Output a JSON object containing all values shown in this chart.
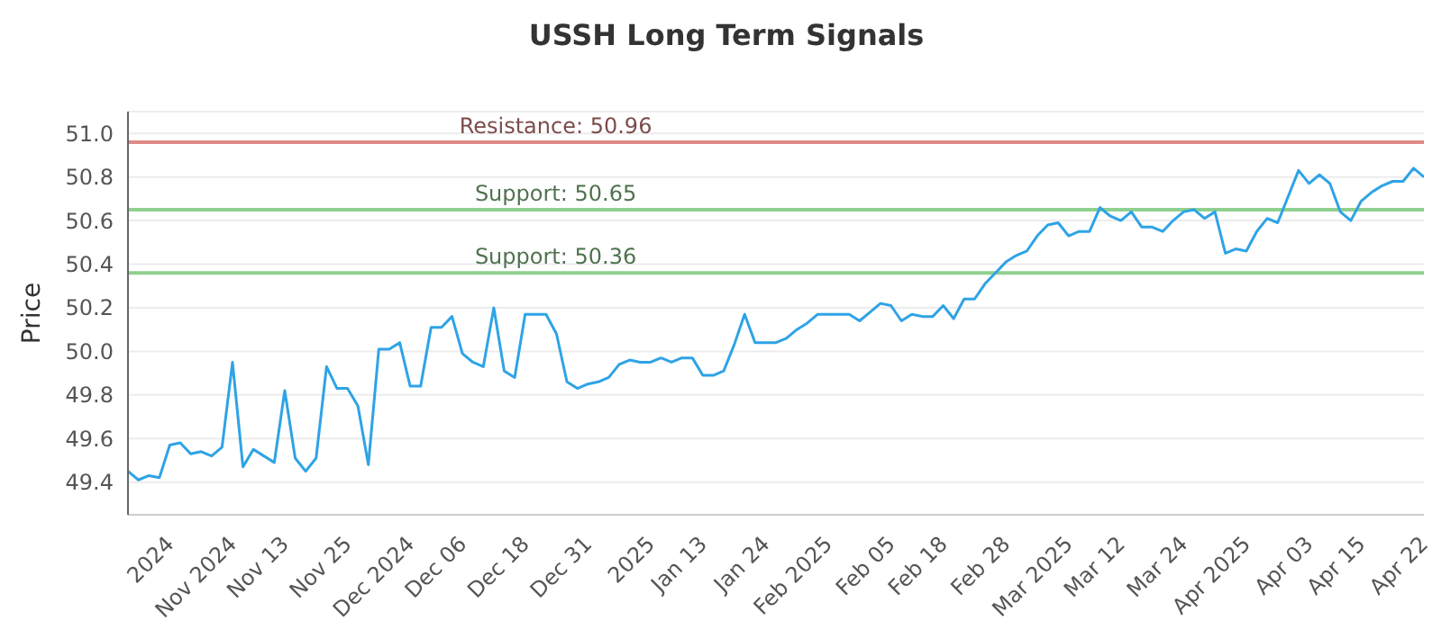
{
  "chart_data": {
    "type": "line",
    "title": "USSH Long Term Signals",
    "ylabel": "Price",
    "categories": [
      null,
      null,
      null,
      null,
      "2024",
      null,
      null,
      null,
      null,
      null,
      "Nov 2024",
      null,
      null,
      null,
      null,
      "Nov 13",
      null,
      null,
      null,
      null,
      null,
      "Nov 25",
      null,
      null,
      null,
      null,
      null,
      "Dec 2024",
      null,
      null,
      null,
      null,
      "Dec 06",
      null,
      null,
      null,
      null,
      null,
      "Dec 18",
      null,
      null,
      null,
      null,
      null,
      "Dec 31",
      null,
      null,
      null,
      null,
      null,
      "2025",
      null,
      null,
      null,
      null,
      "Jan 13",
      null,
      null,
      null,
      null,
      null,
      "Jan 24",
      null,
      null,
      null,
      null,
      null,
      "Feb 2025",
      null,
      null,
      null,
      null,
      null,
      "Feb 05",
      null,
      null,
      null,
      null,
      "Feb 18",
      null,
      null,
      null,
      null,
      null,
      "Feb 28",
      null,
      null,
      null,
      null,
      null,
      "Mar 2025",
      null,
      null,
      null,
      null,
      "Mar 12",
      null,
      null,
      null,
      null,
      null,
      "Mar 24",
      null,
      null,
      null,
      null,
      null,
      "Apr 2025",
      null,
      null,
      null,
      null,
      null,
      "Apr 03",
      null,
      null,
      null,
      null,
      "Apr 15",
      null,
      null,
      null,
      null,
      null,
      "Apr 22"
    ],
    "series": [
      {
        "color": "#2ea3e6",
        "values": [
          49.45,
          49.41,
          49.43,
          49.42,
          49.57,
          49.58,
          49.53,
          49.54,
          49.52,
          49.56,
          49.95,
          49.47,
          49.55,
          49.52,
          49.49,
          49.82,
          49.51,
          49.45,
          49.51,
          49.93,
          49.83,
          49.83,
          49.75,
          49.48,
          50.01,
          50.01,
          50.04,
          49.84,
          49.84,
          50.11,
          50.11,
          50.16,
          49.99,
          49.95,
          49.93,
          50.2,
          49.91,
          49.88,
          50.17,
          50.17,
          50.17,
          50.08,
          49.86,
          49.83,
          49.85,
          49.86,
          49.88,
          49.94,
          49.96,
          49.95,
          49.95,
          49.97,
          49.95,
          49.97,
          49.97,
          49.89,
          49.89,
          49.91,
          50.03,
          50.17,
          50.04,
          50.04,
          50.04,
          50.06,
          50.1,
          50.13,
          50.17,
          50.17,
          50.17,
          50.17,
          50.14,
          50.18,
          50.22,
          50.21,
          50.14,
          50.17,
          50.16,
          50.16,
          50.21,
          50.15,
          50.24,
          50.24,
          50.31,
          50.36,
          50.41,
          50.44,
          50.46,
          50.53,
          50.58,
          50.59,
          50.53,
          50.55,
          50.55,
          50.66,
          50.62,
          50.6,
          50.64,
          50.57,
          50.57,
          50.55,
          50.6,
          50.64,
          50.65,
          50.61,
          50.64,
          50.45,
          50.47,
          50.46,
          50.55,
          50.61,
          50.59,
          50.71,
          50.83,
          50.77,
          50.81,
          50.77,
          50.64,
          50.6,
          50.69,
          50.73,
          50.76,
          50.78,
          50.78,
          50.84,
          50.8
        ]
      }
    ],
    "ylim": [
      49.25,
      51.1
    ],
    "yticks": [
      {
        "value": 49.4,
        "label": "49.4"
      },
      {
        "value": 49.6,
        "label": "49.6"
      },
      {
        "value": 49.8,
        "label": "49.8"
      },
      {
        "value": 50.0,
        "label": "50.0"
      },
      {
        "value": 50.2,
        "label": "50.2"
      },
      {
        "value": 50.4,
        "label": "50.4"
      },
      {
        "value": 50.6,
        "label": "50.6"
      },
      {
        "value": 50.8,
        "label": "50.8"
      },
      {
        "value": 51.0,
        "label": "51.0"
      }
    ],
    "ref_lines": [
      {
        "axis": "y",
        "value": 50.96,
        "label": "Resistance: 50.96",
        "color": "#e08a86"
      },
      {
        "axis": "y",
        "value": 50.65,
        "label": "Support: 50.65",
        "color": "#8fd08f"
      },
      {
        "axis": "y",
        "value": 50.36,
        "label": "Support: 50.36",
        "color": "#8fd08f"
      }
    ],
    "grid": "y",
    "legend": false,
    "marker": "none",
    "line_style": "solid"
  }
}
